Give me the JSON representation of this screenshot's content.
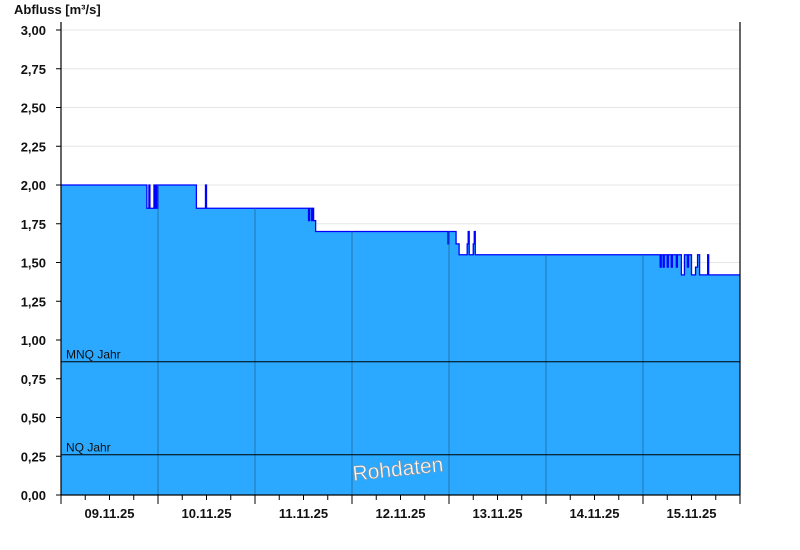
{
  "chart_data": {
    "type": "area",
    "ylabel": "Abfluss [m³/s]",
    "ylim": [
      0,
      3
    ],
    "yticks": [
      "0,00",
      "0,25",
      "0,50",
      "0,75",
      "1,00",
      "1,25",
      "1,50",
      "1,75",
      "2,00",
      "2,25",
      "2,50",
      "2,75",
      "3,00"
    ],
    "xlim": [
      "09.11.25 00:00",
      "16.11.25 00:00"
    ],
    "xticks": [
      "09.11.25",
      "10.11.25",
      "11.11.25",
      "12.11.25",
      "13.11.25",
      "14.11.25",
      "15.11.25"
    ],
    "grid": true,
    "colors": {
      "fill": "#2ba8ff",
      "line": "#0000ff",
      "grid": "#e6e6e6",
      "divider": "#1f6a99"
    },
    "reference_lines": [
      {
        "label": "MNQ Jahr",
        "value": 0.86
      },
      {
        "label": "NQ Jahr",
        "value": 0.26
      }
    ],
    "watermark": "Rohdaten",
    "series": [
      {
        "step": true,
        "points": [
          [
            "09.11.25 00:00",
            2.0
          ],
          [
            "09.11.25 21:15",
            1.85
          ],
          [
            "09.11.25 21:45",
            2.0
          ],
          [
            "09.11.25 22:00",
            1.85
          ],
          [
            "09.11.25 23:00",
            2.0
          ],
          [
            "09.11.25 23:15",
            1.85
          ],
          [
            "09.11.25 23:30",
            2.0
          ],
          [
            "09.11.25 23:45",
            1.85
          ],
          [
            "10.11.25 00:00",
            2.0
          ],
          [
            "10.11.25 09:30",
            1.85
          ],
          [
            "10.11.25 11:45",
            2.0
          ],
          [
            "10.11.25 12:00",
            1.85
          ],
          [
            "11.11.25 13:15",
            1.77
          ],
          [
            "11.11.25 13:30",
            1.85
          ],
          [
            "11.11.25 14:00",
            1.77
          ],
          [
            "11.11.25 14:15",
            1.85
          ],
          [
            "11.11.25 14:30",
            1.77
          ],
          [
            "11.11.25 15:00",
            1.7
          ],
          [
            "12.11.25 23:45",
            1.62
          ],
          [
            "13.11.25 00:00",
            1.7
          ],
          [
            "13.11.25 01:45",
            1.62
          ],
          [
            "13.11.25 02:30",
            1.55
          ],
          [
            "13.11.25 04:30",
            1.62
          ],
          [
            "13.11.25 04:45",
            1.7
          ],
          [
            "13.11.25 05:00",
            1.55
          ],
          [
            "13.11.25 06:00",
            1.62
          ],
          [
            "13.11.25 06:15",
            1.7
          ],
          [
            "13.11.25 06:30",
            1.55
          ],
          [
            "15.11.25 04:15",
            1.47
          ],
          [
            "15.11.25 04:30",
            1.55
          ],
          [
            "15.11.25 05:00",
            1.47
          ],
          [
            "15.11.25 05:15",
            1.55
          ],
          [
            "15.11.25 06:00",
            1.47
          ],
          [
            "15.11.25 06:15",
            1.55
          ],
          [
            "15.11.25 07:00",
            1.47
          ],
          [
            "15.11.25 07:15",
            1.55
          ],
          [
            "15.11.25 08:15",
            1.47
          ],
          [
            "15.11.25 08:30",
            1.55
          ],
          [
            "15.11.25 09:30",
            1.42
          ],
          [
            "15.11.25 10:15",
            1.55
          ],
          [
            "15.11.25 11:00",
            1.47
          ],
          [
            "15.11.25 11:15",
            1.55
          ],
          [
            "15.11.25 12:00",
            1.42
          ],
          [
            "15.11.25 13:00",
            1.47
          ],
          [
            "15.11.25 13:30",
            1.55
          ],
          [
            "15.11.25 14:00",
            1.42
          ],
          [
            "15.11.25 16:00",
            1.55
          ],
          [
            "15.11.25 16:15",
            1.42
          ],
          [
            "16.11.25 00:00",
            1.42
          ]
        ]
      }
    ]
  }
}
